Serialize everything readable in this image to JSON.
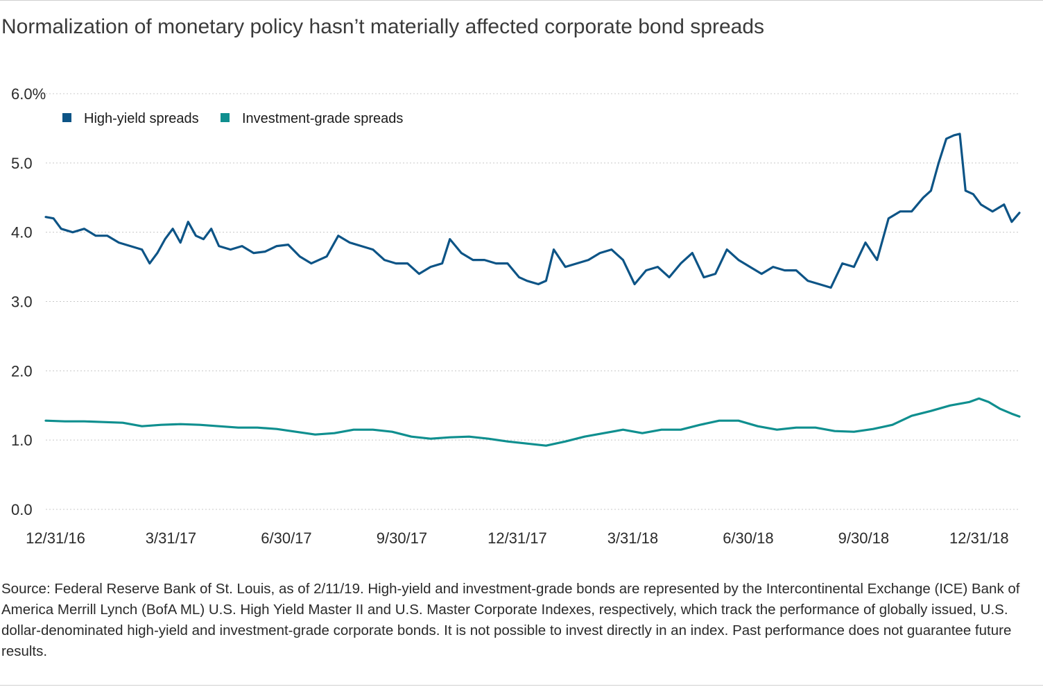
{
  "title": "Normalization of monetary policy hasn’t materially affected corporate bond spreads",
  "source_note": "Source: Federal Reserve Bank of St. Louis, as of 2/11/19. High-yield and investment-grade bonds are represented by the Intercontinental Exchange (ICE) Bank of America Merrill Lynch (BofA ML) U.S. High Yield Master II and U.S. Master Corporate Indexes, respectively, which track the performance of globally issued, U.S. dollar-denominated high-yield and investment-grade corporate bonds. It is not possible to invest directly in an index. Past performance does not guarantee future results.",
  "colors": {
    "high_yield": "#0d5486",
    "investment_grade": "#0f8f8f",
    "grid": "#c8c8c8"
  },
  "chart_data": {
    "type": "line",
    "title": "Normalization of monetary policy hasn’t materially affected corporate bond spreads",
    "xlabel": "",
    "ylabel": "",
    "x_unit": "months since 12/31/16",
    "xlim": [
      0,
      25.3
    ],
    "ylim": [
      0,
      6
    ],
    "y_ticks": [
      0,
      1,
      2,
      3,
      4,
      5,
      6
    ],
    "y_tick_labels": [
      "0.0",
      "1.0",
      "2.0",
      "3.0",
      "4.0",
      "5.0",
      "6.0%"
    ],
    "x_ticks": [
      0,
      3,
      6,
      9,
      12,
      15,
      18,
      21,
      24
    ],
    "x_tick_labels": [
      "12/31/16",
      "3/31/17",
      "6/30/17",
      "9/30/17",
      "12/31/17",
      "3/31/18",
      "6/30/18",
      "9/30/18",
      "12/31/18"
    ],
    "grid": "horizontal dotted",
    "legend_position": "top-left",
    "series": [
      {
        "name": "High-yield spreads",
        "x": [
          0,
          0.2,
          0.4,
          0.7,
          1.0,
          1.3,
          1.6,
          1.9,
          2.2,
          2.5,
          2.7,
          2.9,
          3.1,
          3.3,
          3.5,
          3.7,
          3.9,
          4.1,
          4.3,
          4.5,
          4.8,
          5.1,
          5.4,
          5.7,
          6.0,
          6.3,
          6.6,
          6.9,
          7.1,
          7.3,
          7.6,
          7.9,
          8.2,
          8.5,
          8.8,
          9.1,
          9.4,
          9.7,
          10.0,
          10.3,
          10.5,
          10.8,
          11.1,
          11.4,
          11.7,
          12.0,
          12.3,
          12.5,
          12.8,
          13.0,
          13.2,
          13.5,
          13.8,
          14.1,
          14.4,
          14.7,
          15.0,
          15.3,
          15.6,
          15.9,
          16.2,
          16.5,
          16.8,
          17.1,
          17.4,
          17.7,
          18.0,
          18.3,
          18.6,
          18.9,
          19.2,
          19.5,
          19.8,
          20.1,
          20.4,
          20.7,
          21.0,
          21.3,
          21.6,
          21.9,
          22.2,
          22.5,
          22.8,
          23.0,
          23.2,
          23.4,
          23.6,
          23.75,
          23.9,
          24.1,
          24.3,
          24.6,
          24.9,
          25.1,
          25.3
        ],
        "values": [
          4.22,
          4.2,
          4.05,
          4.0,
          4.05,
          3.95,
          3.95,
          3.85,
          3.8,
          3.75,
          3.55,
          3.7,
          3.9,
          4.05,
          3.85,
          4.15,
          3.95,
          3.9,
          4.05,
          3.8,
          3.75,
          3.8,
          3.7,
          3.72,
          3.8,
          3.82,
          3.65,
          3.55,
          3.6,
          3.65,
          3.95,
          3.85,
          3.8,
          3.75,
          3.6,
          3.55,
          3.55,
          3.4,
          3.5,
          3.55,
          3.9,
          3.7,
          3.6,
          3.6,
          3.55,
          3.55,
          3.35,
          3.3,
          3.25,
          3.3,
          3.75,
          3.5,
          3.55,
          3.6,
          3.7,
          3.75,
          3.6,
          3.25,
          3.45,
          3.5,
          3.35,
          3.55,
          3.7,
          3.35,
          3.4,
          3.75,
          3.6,
          3.5,
          3.4,
          3.5,
          3.45,
          3.45,
          3.3,
          3.25,
          3.2,
          3.55,
          3.5,
          3.85,
          3.6,
          4.2,
          4.3,
          4.3,
          4.5,
          4.6,
          5.0,
          5.35,
          5.4,
          5.42,
          4.6,
          4.55,
          4.4,
          4.3,
          4.4,
          4.15,
          4.28
        ]
      },
      {
        "name": "Investment-grade spreads",
        "x": [
          0,
          0.5,
          1.0,
          1.5,
          2.0,
          2.5,
          3.0,
          3.5,
          4.0,
          4.5,
          5.0,
          5.5,
          6.0,
          6.5,
          7.0,
          7.5,
          8.0,
          8.5,
          9.0,
          9.5,
          10.0,
          10.5,
          11.0,
          11.5,
          12.0,
          12.5,
          13.0,
          13.5,
          14.0,
          14.5,
          15.0,
          15.5,
          16.0,
          16.5,
          17.0,
          17.5,
          18.0,
          18.5,
          19.0,
          19.5,
          20.0,
          20.5,
          21.0,
          21.5,
          22.0,
          22.5,
          23.0,
          23.5,
          24.0,
          24.25,
          24.5,
          24.8,
          25.1,
          25.3
        ],
        "values": [
          1.28,
          1.27,
          1.27,
          1.26,
          1.25,
          1.2,
          1.22,
          1.23,
          1.22,
          1.2,
          1.18,
          1.18,
          1.16,
          1.12,
          1.08,
          1.1,
          1.15,
          1.15,
          1.12,
          1.05,
          1.02,
          1.04,
          1.05,
          1.02,
          0.98,
          0.95,
          0.92,
          0.98,
          1.05,
          1.1,
          1.15,
          1.1,
          1.15,
          1.15,
          1.22,
          1.28,
          1.28,
          1.2,
          1.15,
          1.18,
          1.18,
          1.13,
          1.12,
          1.16,
          1.22,
          1.35,
          1.42,
          1.5,
          1.55,
          1.6,
          1.55,
          1.45,
          1.38,
          1.34
        ]
      }
    ]
  }
}
